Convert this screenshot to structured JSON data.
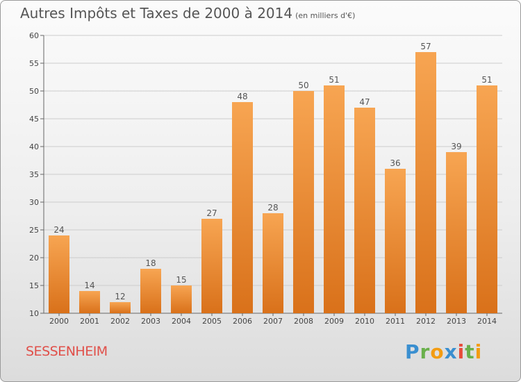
{
  "title": "Autres Impôts et Taxes de 2000 à 2014",
  "unit": "(en milliers d'€)",
  "city": "SESSENHEIM",
  "logo": "Proxiti",
  "colors": {
    "bar_top": "#f7a552",
    "bar_bottom": "#d9711a",
    "grid": "#cccccc",
    "city": "#e0504a"
  },
  "chart_data": {
    "type": "bar",
    "title": "Autres Impôts et Taxes de 2000 à 2014",
    "subtitle": "(en milliers d'€)",
    "categories": [
      "2000",
      "2001",
      "2002",
      "2003",
      "2004",
      "2005",
      "2006",
      "2007",
      "2008",
      "2009",
      "2010",
      "2011",
      "2012",
      "2013",
      "2014"
    ],
    "values": [
      24,
      14,
      12,
      18,
      15,
      27,
      48,
      28,
      50,
      51,
      47,
      36,
      57,
      39,
      51
    ],
    "ylim": [
      10,
      60
    ],
    "yticks": [
      10,
      15,
      20,
      25,
      30,
      35,
      40,
      45,
      50,
      55,
      60
    ],
    "grid": true,
    "data_labels": true
  }
}
